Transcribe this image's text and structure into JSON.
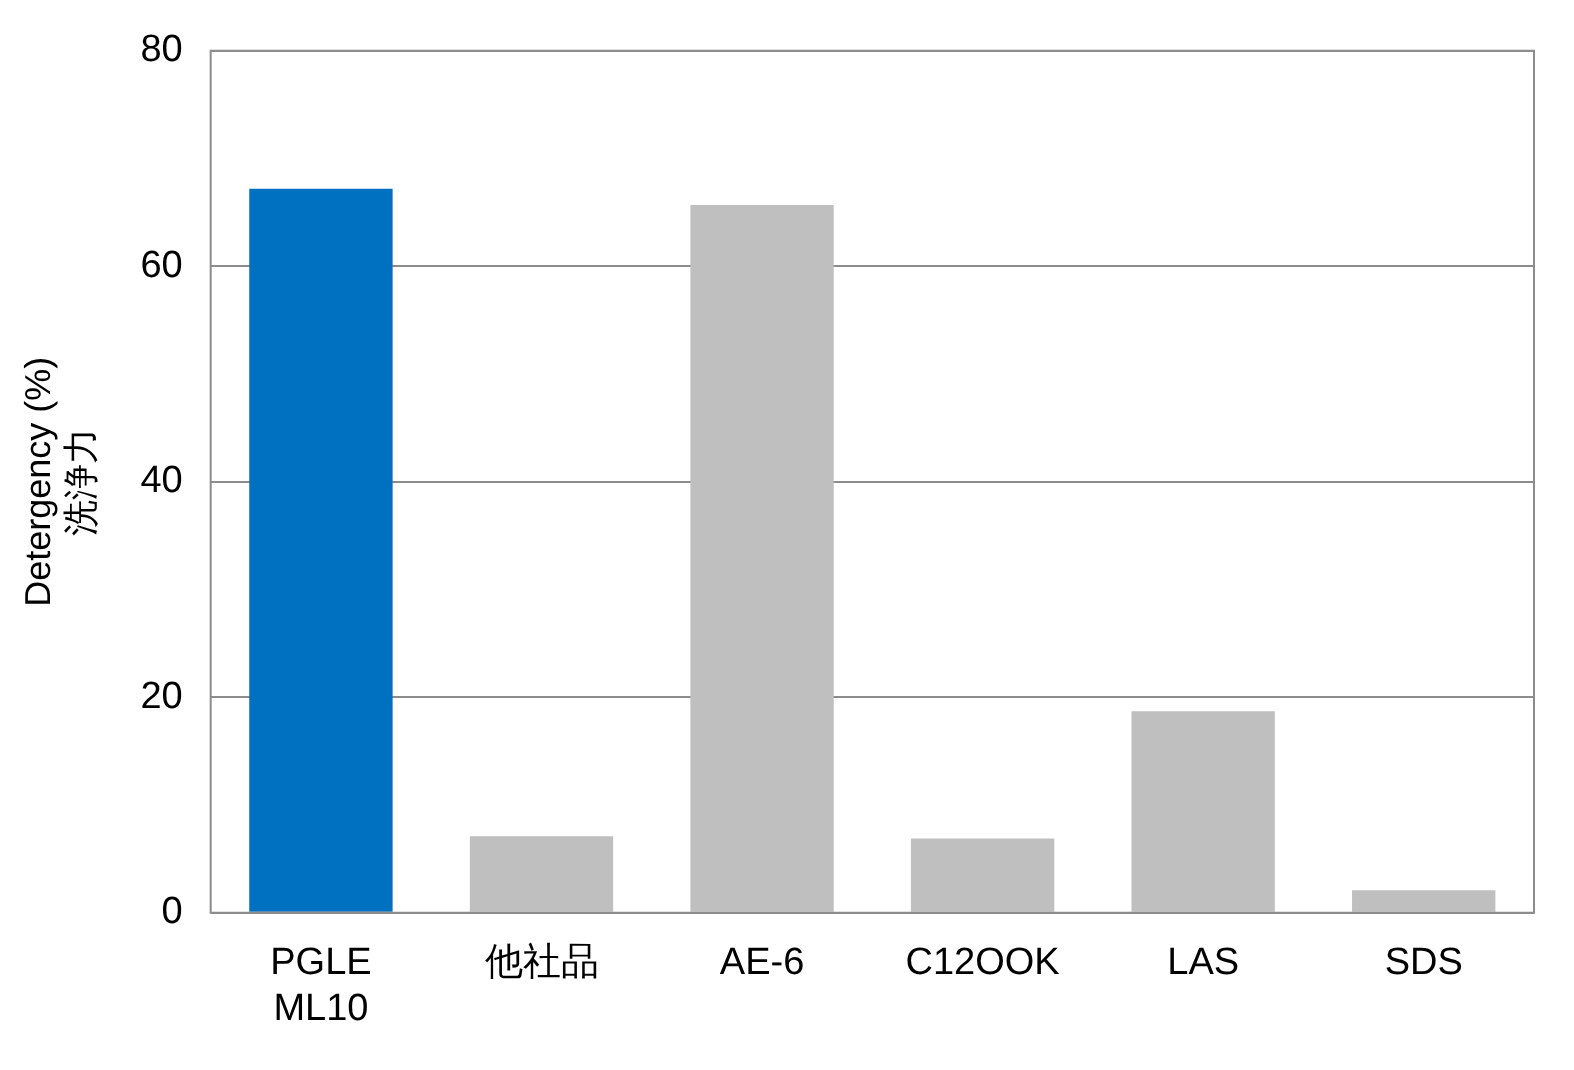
{
  "chart_data": {
    "type": "bar",
    "ylabel": "Detergency (%)\n洗浄力",
    "categories": [
      "PGLE ML10",
      "他社品",
      "AE-6",
      "C12OOK",
      "LAS",
      "SDS"
    ],
    "values": [
      67.2,
      7.1,
      65.7,
      6.9,
      18.7,
      2.1
    ],
    "colors": [
      "#0070c0",
      "#bfbfbf",
      "#bfbfbf",
      "#bfbfbf",
      "#bfbfbf",
      "#bfbfbf"
    ],
    "ylim": [
      0,
      80
    ],
    "yticks": [
      0,
      20,
      40,
      60,
      80
    ],
    "grid": "y",
    "legend": false
  }
}
